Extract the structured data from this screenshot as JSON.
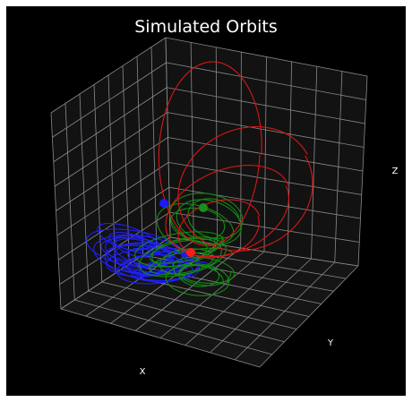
{
  "chart_data": {
    "type": "line",
    "projection": "3d",
    "title": "Simulated Orbits",
    "xlabel": "X",
    "ylabel": "Y",
    "zlabel": "Z",
    "background": "#000000",
    "pane_color": "#111111",
    "grid_color": "#8a8a8a",
    "grid": true,
    "legend": "none",
    "series": [
      {
        "color": "#1f1fff",
        "marker_color": "#1a1aff"
      },
      {
        "color": "#138a13",
        "marker_color": "#1a8f1a"
      },
      {
        "color": "#d81616",
        "marker_color": "#ff1a1a"
      }
    ]
  }
}
